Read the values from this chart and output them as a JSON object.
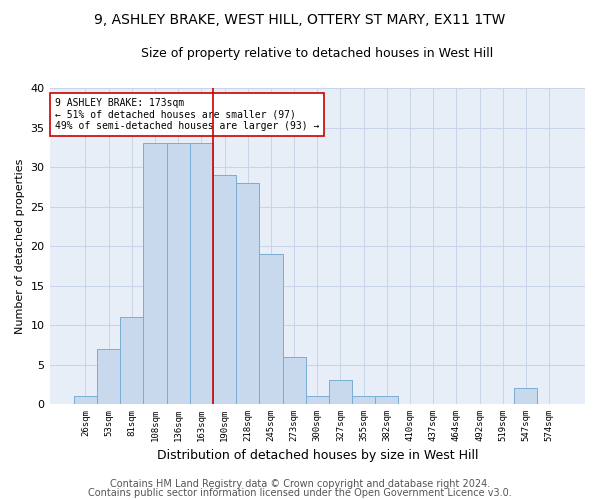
{
  "title1": "9, ASHLEY BRAKE, WEST HILL, OTTERY ST MARY, EX11 1TW",
  "title2": "Size of property relative to detached houses in West Hill",
  "xlabel": "Distribution of detached houses by size in West Hill",
  "ylabel": "Number of detached properties",
  "footer1": "Contains HM Land Registry data © Crown copyright and database right 2024.",
  "footer2": "Contains public sector information licensed under the Open Government Licence v3.0.",
  "annotation_line1": "9 ASHLEY BRAKE: 173sqm",
  "annotation_line2": "← 51% of detached houses are smaller (97)",
  "annotation_line3": "49% of semi-detached houses are larger (93) →",
  "bar_categories": [
    "26sqm",
    "53sqm",
    "81sqm",
    "108sqm",
    "136sqm",
    "163sqm",
    "190sqm",
    "218sqm",
    "245sqm",
    "273sqm",
    "300sqm",
    "327sqm",
    "355sqm",
    "382sqm",
    "410sqm",
    "437sqm",
    "464sqm",
    "492sqm",
    "519sqm",
    "547sqm",
    "574sqm"
  ],
  "bar_values": [
    1,
    7,
    11,
    33,
    33,
    33,
    29,
    28,
    19,
    6,
    1,
    3,
    1,
    1,
    0,
    0,
    0,
    0,
    0,
    2,
    0
  ],
  "bar_color": "#c8d9ee",
  "bar_edge_color": "#7aadd4",
  "vline_color": "#cc0000",
  "vline_x": 5.5,
  "annotation_box_color": "#cc0000",
  "annotation_fill": "#ffffff",
  "grid_color": "#c8d4e8",
  "background_color": "#e8eef8",
  "ylim": [
    0,
    40
  ],
  "yticks": [
    0,
    5,
    10,
    15,
    20,
    25,
    30,
    35,
    40
  ],
  "title1_fontsize": 10,
  "title2_fontsize": 9,
  "xlabel_fontsize": 9,
  "ylabel_fontsize": 8,
  "footer_fontsize": 7
}
